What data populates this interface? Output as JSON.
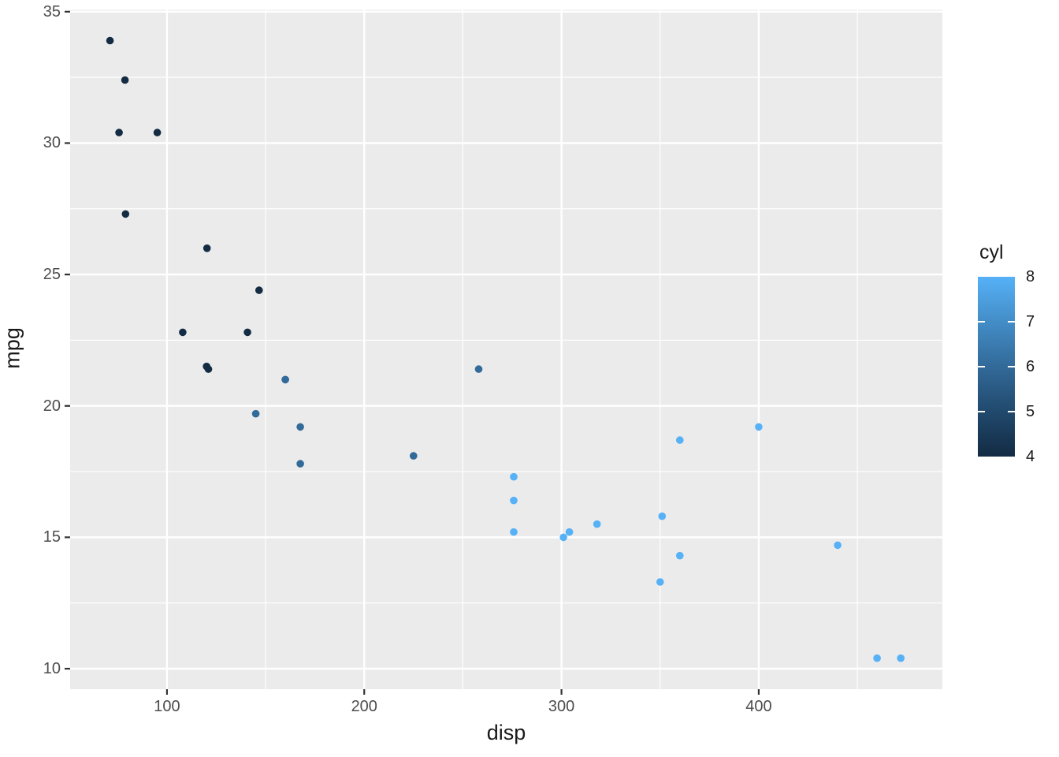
{
  "chart_data": {
    "type": "scatter",
    "title": "",
    "xlabel": "disp",
    "ylabel": "mpg",
    "x_domain": [
      50.9,
      493.1
    ],
    "y_domain": [
      9.22,
      35.07
    ],
    "x_ticks": [
      100,
      200,
      300,
      400
    ],
    "x_minor_ticks": [
      150,
      250,
      350,
      450
    ],
    "y_ticks": [
      10,
      15,
      20,
      25,
      30,
      35
    ],
    "y_minor_ticks": [
      12.5,
      17.5,
      22.5,
      27.5,
      32.5
    ],
    "grid": true,
    "panel_bg": "#EBEBEB",
    "grid_color": "#FFFFFF",
    "tick_mark_color": "#333333",
    "tick_label_color": "#4d4d4d",
    "point_radius": 4.8,
    "series": [
      {
        "name": "cyl-4",
        "cyl": 4,
        "color": "#132B43",
        "points": [
          [
            71.1,
            33.9
          ],
          [
            75.7,
            30.4
          ],
          [
            78.7,
            32.4
          ],
          [
            79.0,
            27.3
          ],
          [
            95.1,
            30.4
          ],
          [
            108.0,
            22.8
          ],
          [
            120.1,
            21.5
          ],
          [
            120.3,
            26.0
          ],
          [
            121.0,
            21.4
          ],
          [
            140.8,
            22.8
          ],
          [
            146.7,
            24.4
          ]
        ]
      },
      {
        "name": "cyl-6",
        "cyl": 6,
        "color": "#326A99",
        "points": [
          [
            145.0,
            19.7
          ],
          [
            160.0,
            21.0
          ],
          [
            160.0,
            21.0
          ],
          [
            167.6,
            19.2
          ],
          [
            167.6,
            17.8
          ],
          [
            225.0,
            18.1
          ],
          [
            258.0,
            21.4
          ]
        ]
      },
      {
        "name": "cyl-8",
        "cyl": 8,
        "color": "#56B1F7",
        "points": [
          [
            275.8,
            15.2
          ],
          [
            275.8,
            16.4
          ],
          [
            275.8,
            17.3
          ],
          [
            301.0,
            15.0
          ],
          [
            304.0,
            15.2
          ],
          [
            318.0,
            15.5
          ],
          [
            350.0,
            13.3
          ],
          [
            351.0,
            15.8
          ],
          [
            360.0,
            14.3
          ],
          [
            360.0,
            18.7
          ],
          [
            400.0,
            19.2
          ],
          [
            440.0,
            14.7
          ],
          [
            460.0,
            10.4
          ],
          [
            472.0,
            10.4
          ]
        ]
      }
    ],
    "legend": {
      "title": "cyl",
      "position": "right",
      "style": "colorbar",
      "domain": [
        4,
        8
      ],
      "ticks": [
        8,
        7,
        6,
        5,
        4
      ],
      "bar_tick_values": [
        5,
        6,
        7
      ],
      "gradient_stops": [
        {
          "value": 4,
          "color": "#132B43"
        },
        {
          "value": 5,
          "color": "#21496D"
        },
        {
          "value": 6,
          "color": "#326A99"
        },
        {
          "value": 7,
          "color": "#438DC7"
        },
        {
          "value": 8,
          "color": "#56B1F7"
        }
      ]
    }
  }
}
